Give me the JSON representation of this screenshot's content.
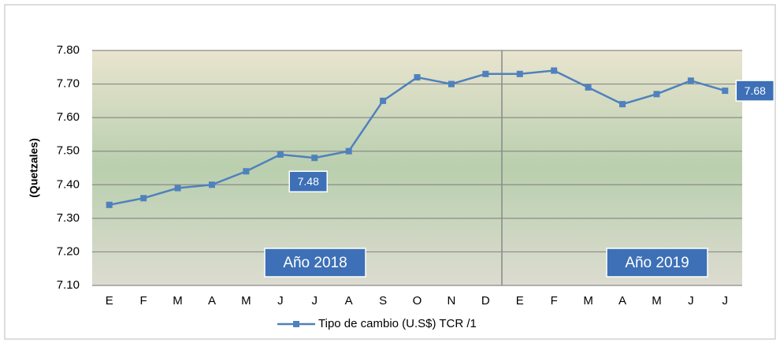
{
  "chart_data": {
    "type": "line",
    "categories": [
      "E",
      "F",
      "M",
      "A",
      "M",
      "J",
      "J",
      "A",
      "S",
      "O",
      "N",
      "D",
      "E",
      "F",
      "M",
      "A",
      "M",
      "J",
      "J"
    ],
    "series": [
      {
        "name": "Tipo de cambio (U.S$) TCR /1",
        "color": "#4f81bd",
        "values": [
          7.34,
          7.36,
          7.39,
          7.4,
          7.44,
          7.49,
          7.48,
          7.5,
          7.65,
          7.72,
          7.7,
          7.73,
          7.73,
          7.74,
          7.69,
          7.64,
          7.67,
          7.71,
          7.68
        ],
        "value_labels": [
          null,
          null,
          null,
          null,
          null,
          null,
          "7.48",
          null,
          null,
          null,
          null,
          null,
          null,
          null,
          null,
          null,
          null,
          null,
          "7.68"
        ]
      }
    ],
    "ylabel": "(Quetzales)",
    "ylim": [
      7.1,
      7.8
    ],
    "yticks": [
      {
        "value": 7.1,
        "label": "7.10"
      },
      {
        "value": 7.2,
        "label": "7.20"
      },
      {
        "value": 7.3,
        "label": "7.30"
      },
      {
        "value": 7.4,
        "label": "7.40"
      },
      {
        "value": 7.5,
        "label": "7.50"
      },
      {
        "value": 7.6,
        "label": "7.60"
      },
      {
        "value": 7.7,
        "label": "7.70"
      },
      {
        "value": 7.8,
        "label": "7.80"
      }
    ],
    "grid": true,
    "annotations": [
      "Año 2018",
      "Año 2019"
    ]
  }
}
